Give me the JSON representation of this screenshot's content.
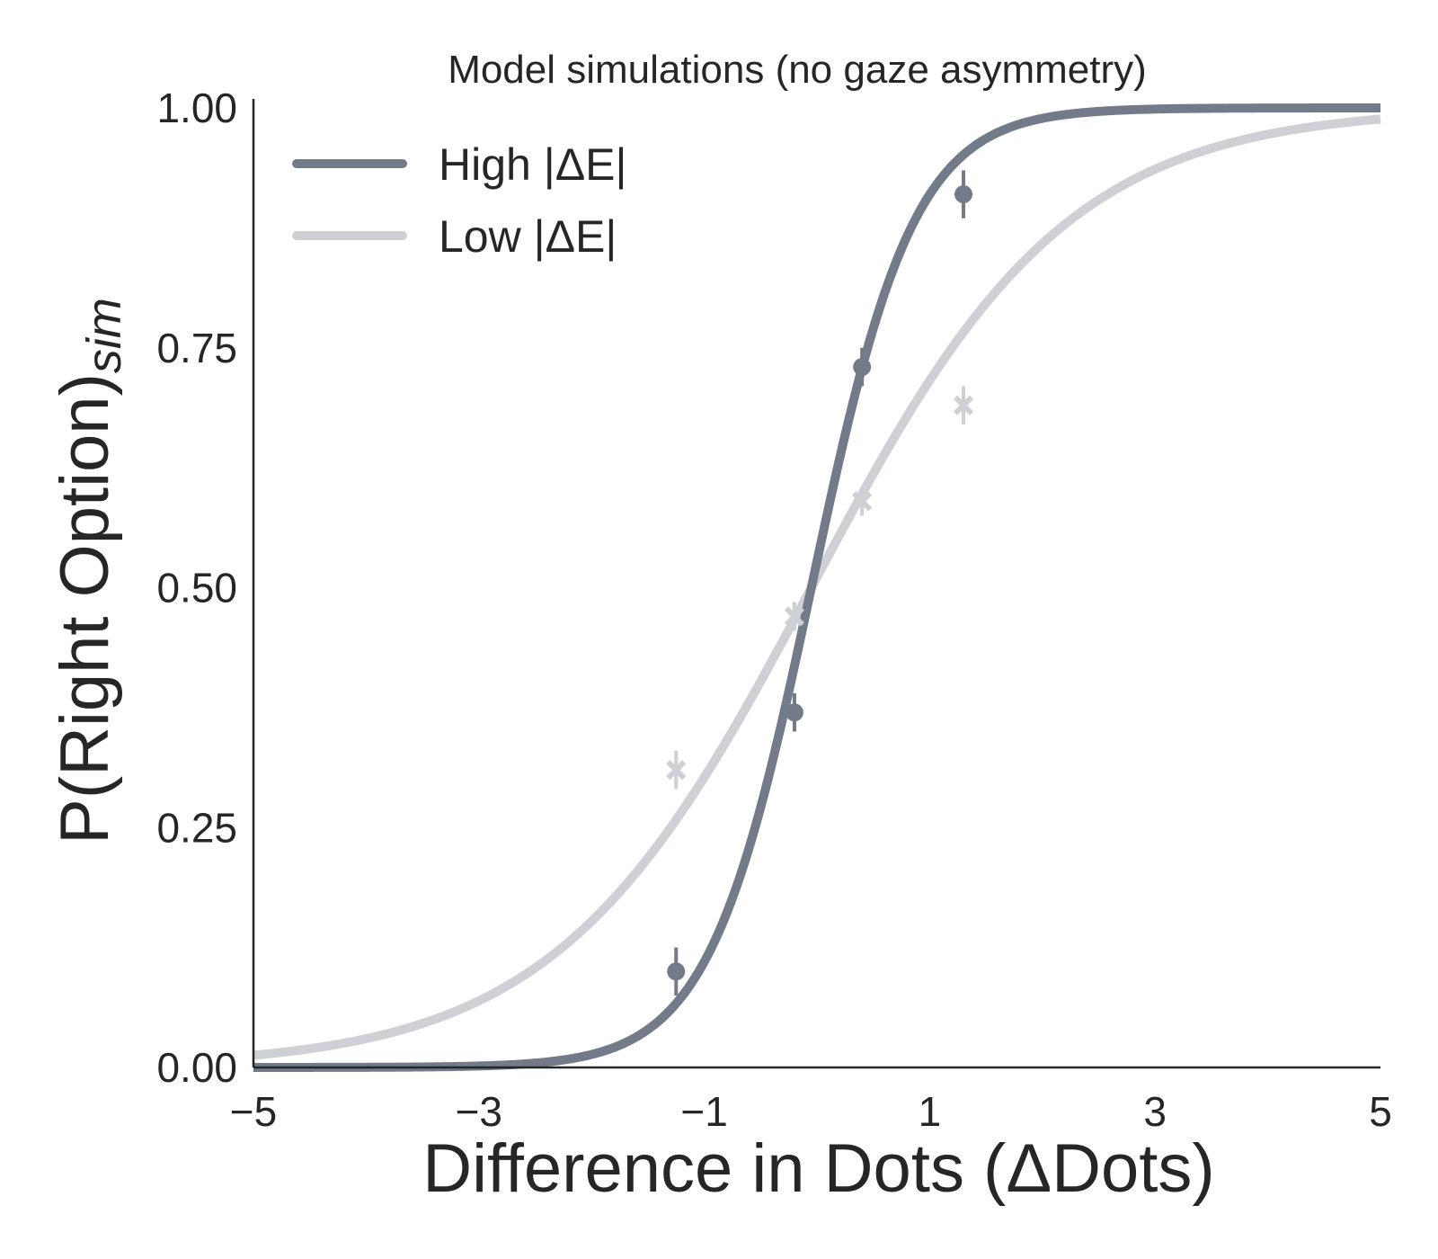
{
  "chart_data": {
    "type": "line",
    "title": "Model simulations (no gaze asymmetry)",
    "xlabel": "Difference in Dots (ΔDots)",
    "ylabel": "P(Right Option)",
    "ylabel_subscript": "sim",
    "xlim": [
      -5,
      5
    ],
    "ylim": [
      0,
      1
    ],
    "xticks": [
      -5,
      -3,
      -1,
      1,
      3,
      5
    ],
    "xtick_labels": [
      "−5",
      "−3",
      "−1",
      "1",
      "3",
      "5"
    ],
    "yticks": [
      0,
      0.25,
      0.5,
      0.75,
      1.0
    ],
    "ytick_labels": [
      "0.00",
      "0.25",
      "0.50",
      "0.75",
      "1.00"
    ],
    "grid": false,
    "legend_position": "top-left",
    "series": [
      {
        "name": "High |ΔE|",
        "color": "#737b8a",
        "fit": {
          "form": "logistic",
          "slope": 2.2,
          "midpoint": -0.05
        },
        "marker": "circle",
        "points": [
          {
            "x": -1.25,
            "y": 0.1,
            "err": 0.025
          },
          {
            "x": -0.2,
            "y": 0.37,
            "err": 0.02
          },
          {
            "x": 0.4,
            "y": 0.73,
            "err": 0.02
          },
          {
            "x": 1.3,
            "y": 0.91,
            "err": 0.025
          }
        ]
      },
      {
        "name": "Low |ΔE|",
        "color": "#cfd0d5",
        "fit": {
          "form": "logistic",
          "slope": 0.88,
          "midpoint": -0.05
        },
        "marker": "x",
        "points": [
          {
            "x": -1.25,
            "y": 0.31,
            "err": 0.02
          },
          {
            "x": -0.2,
            "y": 0.47,
            "err": 0.015
          },
          {
            "x": 0.4,
            "y": 0.59,
            "err": 0.015
          },
          {
            "x": 1.3,
            "y": 0.69,
            "err": 0.02
          }
        ]
      }
    ]
  }
}
